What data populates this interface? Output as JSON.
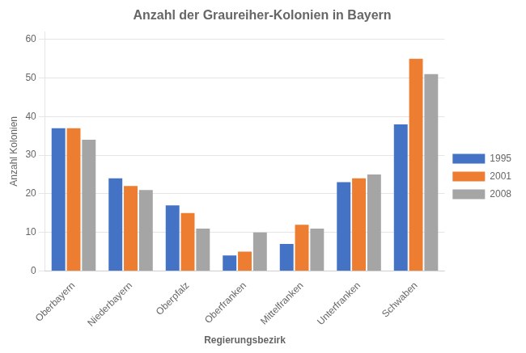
{
  "chart_data": {
    "type": "bar",
    "title": "Anzahl der Graureiher-Kolonien in Bayern",
    "xlabel": "Regierungsbezirk",
    "ylabel": "Anzahl Kolonien",
    "categories": [
      "Oberbayern",
      "Niederbayern",
      "Oberpfalz",
      "Oberfranken",
      "Mittelfranken",
      "Unterfranken",
      "Schwaben"
    ],
    "series": [
      {
        "name": "1995",
        "color": "#4472C4",
        "values": [
          37,
          24,
          17,
          4,
          7,
          23,
          38
        ]
      },
      {
        "name": "2001",
        "color": "#ED7D31",
        "values": [
          37,
          22,
          15,
          5,
          12,
          24,
          55
        ]
      },
      {
        "name": "2008",
        "color": "#A5A5A5",
        "values": [
          34,
          21,
          11,
          10,
          11,
          25,
          51
        ]
      }
    ],
    "ylim": [
      0,
      62
    ],
    "yticks": [
      0,
      10,
      20,
      30,
      40,
      50,
      60
    ],
    "grid": true,
    "legend": "right"
  }
}
